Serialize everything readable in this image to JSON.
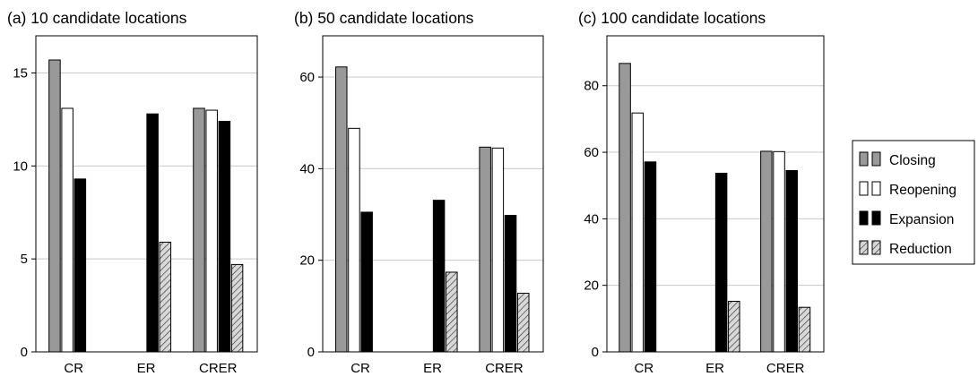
{
  "figure": {
    "legend": {
      "items": [
        {
          "label": "Closing",
          "style": "gray"
        },
        {
          "label": "Reopening",
          "style": "white"
        },
        {
          "label": "Expansion",
          "style": "black"
        },
        {
          "label": "Reduction",
          "style": "hatch"
        }
      ]
    },
    "colors": {
      "gray": "#999999",
      "white": "#ffffff",
      "black": "#000000",
      "hatch_fill": "#d8d8d8",
      "grid": "#c8c8c8"
    }
  },
  "chart_data": [
    {
      "type": "bar",
      "title": "(a) 10 candidate locations",
      "categories": [
        "CR",
        "ER",
        "CRER"
      ],
      "ylim": [
        0,
        17
      ],
      "yticks": [
        0,
        5,
        10,
        15
      ],
      "grid": true,
      "series": [
        {
          "name": "Closing",
          "values": [
            15.7,
            0,
            13.1
          ]
        },
        {
          "name": "Reopening",
          "values": [
            13.1,
            0,
            13.0
          ]
        },
        {
          "name": "Expansion",
          "values": [
            9.3,
            12.8,
            12.4
          ]
        },
        {
          "name": "Reduction",
          "values": [
            0,
            5.9,
            4.7
          ]
        }
      ]
    },
    {
      "type": "bar",
      "title": "(b) 50 candidate locations",
      "categories": [
        "CR",
        "ER",
        "CRER"
      ],
      "ylim": [
        0,
        69
      ],
      "yticks": [
        0,
        20,
        40,
        60
      ],
      "grid": true,
      "series": [
        {
          "name": "Closing",
          "values": [
            62.2,
            0,
            44.7
          ]
        },
        {
          "name": "Reopening",
          "values": [
            48.8,
            0,
            44.5
          ]
        },
        {
          "name": "Expansion",
          "values": [
            30.5,
            33.1,
            29.8
          ]
        },
        {
          "name": "Reduction",
          "values": [
            0,
            17.4,
            12.8
          ]
        }
      ]
    },
    {
      "type": "bar",
      "title": "(c) 100 candidate locations",
      "categories": [
        "CR",
        "ER",
        "CRER"
      ],
      "ylim": [
        0,
        95
      ],
      "yticks": [
        0,
        20,
        40,
        60,
        80
      ],
      "grid": true,
      "series": [
        {
          "name": "Closing",
          "values": [
            86.7,
            0,
            60.3
          ]
        },
        {
          "name": "Reopening",
          "values": [
            71.8,
            0,
            60.2
          ]
        },
        {
          "name": "Expansion",
          "values": [
            57.1,
            53.7,
            54.5
          ]
        },
        {
          "name": "Reduction",
          "values": [
            0,
            15.2,
            13.4
          ]
        }
      ]
    }
  ]
}
